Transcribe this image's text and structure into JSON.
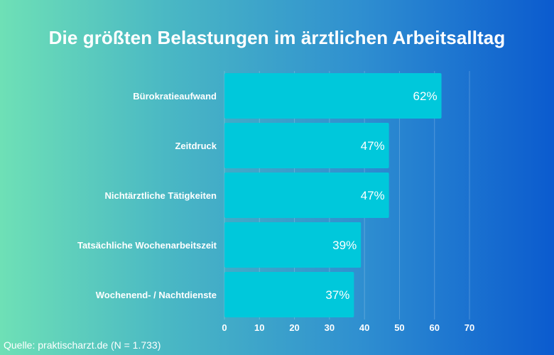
{
  "chart_data": {
    "type": "bar",
    "orientation": "horizontal",
    "title": "Die größten Belastungen im ärztlichen Arbeitsalltag",
    "categories": [
      "Bürokratieaufwand",
      "Zeitdruck",
      "Nichtärztliche Tätigkeiten",
      "Tatsächliche Wochenarbeitszeit",
      "Wochenend- / Nachtdienste"
    ],
    "values": [
      62,
      47,
      47,
      39,
      37
    ],
    "value_labels": [
      "62%",
      "47%",
      "47%",
      "39%",
      "37%"
    ],
    "xlim": [
      0,
      70
    ],
    "xticks": [
      0,
      10,
      20,
      30,
      40,
      50,
      60,
      70
    ],
    "grid": true,
    "bar_color": "#00c8db"
  },
  "footer": {
    "source": "Quelle: praktischarzt.de (N = 1.733)"
  }
}
